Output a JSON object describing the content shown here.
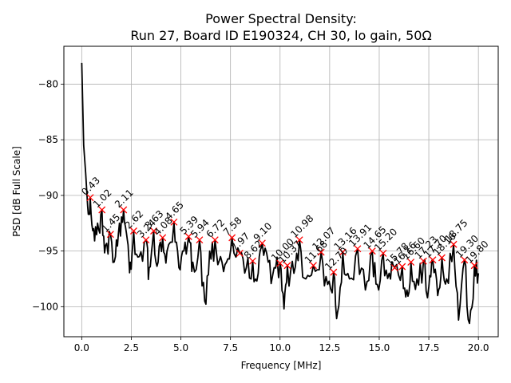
{
  "chart_data": {
    "type": "line",
    "title": "Power Spectral Density:",
    "subtitle": "Run 27, Board ID E190324, CH 30, lo gain, 50Ω",
    "xlabel": "Frequency [MHz]",
    "ylabel": "PSD [dB Full Scale]",
    "xlim": [
      -0.9,
      21.0
    ],
    "ylim": [
      -102.7,
      -76.6
    ],
    "xticks": [
      0.0,
      2.5,
      5.0,
      7.5,
      10.0,
      12.5,
      15.0,
      17.5,
      20.0
    ],
    "xtick_labels": [
      "0.0",
      "2.5",
      "5.0",
      "7.5",
      "10.0",
      "12.5",
      "15.0",
      "17.5",
      "20.0"
    ],
    "yticks": [
      -80,
      -85,
      -90,
      -95,
      -100
    ],
    "ytick_labels": [
      "−80",
      "−85",
      "−90",
      "−95",
      "−100"
    ],
    "grid": true,
    "line_color": "#000000",
    "marker_color": "#ff0000",
    "series": [
      {
        "name": "PSD",
        "x": [
          0.0,
          0.1,
          0.2,
          0.3,
          0.43,
          0.6,
          0.8,
          1.02,
          1.2,
          1.45,
          1.7,
          1.9,
          2.11,
          2.3,
          2.45,
          2.62,
          2.9,
          3.24,
          3.4,
          3.63,
          3.85,
          4.08,
          4.3,
          4.65,
          4.9,
          5.15,
          5.39,
          5.6,
          5.94,
          6.2,
          6.45,
          6.72,
          7.0,
          7.3,
          7.58,
          7.97,
          8.3,
          8.62,
          8.9,
          9.1,
          9.4,
          9.7,
          10.0,
          10.2,
          10.37,
          10.7,
          10.98,
          11.3,
          11.68,
          12.07,
          12.4,
          12.7,
          12.9,
          13.16,
          13.5,
          13.91,
          14.3,
          14.65,
          14.9,
          15.2,
          15.5,
          15.78,
          16.16,
          16.4,
          16.6,
          16.9,
          17.23,
          17.5,
          17.7,
          17.95,
          18.16,
          18.4,
          18.75,
          19.0,
          19.3,
          19.55,
          19.8,
          20.0
        ],
        "y": [
          -78.1,
          -85.5,
          -88.0,
          -91.0,
          -90.2,
          -93.0,
          -92.5,
          -91.3,
          -94.5,
          -93.5,
          -95.5,
          -92.5,
          -91.3,
          -94.0,
          -96.0,
          -93.2,
          -95.5,
          -94.0,
          -96.5,
          -93.2,
          -96.0,
          -93.8,
          -95.0,
          -92.4,
          -96.5,
          -95.0,
          -93.7,
          -96.0,
          -94.0,
          -99.5,
          -95.0,
          -94.0,
          -95.5,
          -96.0,
          -93.8,
          -95.2,
          -96.5,
          -95.9,
          -97.0,
          -94.3,
          -96.0,
          -96.5,
          -96.1,
          -100.2,
          -96.3,
          -97.0,
          -94.0,
          -97.5,
          -96.3,
          -95.1,
          -98.0,
          -96.9,
          -100.5,
          -95.1,
          -97.5,
          -94.8,
          -98.5,
          -95.0,
          -98.0,
          -95.2,
          -97.0,
          -96.5,
          -96.4,
          -98.5,
          -96.0,
          -97.5,
          -95.9,
          -98.2,
          -95.8,
          -99.0,
          -95.6,
          -97.5,
          -94.4,
          -101.2,
          -95.8,
          -101.5,
          -96.3,
          -97.0
        ]
      }
    ],
    "peaks": [
      {
        "label": "0.43",
        "x": 0.43,
        "y": -90.2
      },
      {
        "label": "1.02",
        "x": 1.02,
        "y": -91.3
      },
      {
        "label": "1.45",
        "x": 1.45,
        "y": -93.5
      },
      {
        "label": "2.11",
        "x": 2.11,
        "y": -91.3
      },
      {
        "label": "2.62",
        "x": 2.62,
        "y": -93.2
      },
      {
        "label": "3.24",
        "x": 3.24,
        "y": -94.0
      },
      {
        "label": "3.63",
        "x": 3.63,
        "y": -93.2
      },
      {
        "label": "4.08",
        "x": 4.08,
        "y": -93.8
      },
      {
        "label": "4.65",
        "x": 4.65,
        "y": -92.4
      },
      {
        "label": "5.39",
        "x": 5.39,
        "y": -93.7
      },
      {
        "label": "5.94",
        "x": 5.94,
        "y": -94.0
      },
      {
        "label": "6.72",
        "x": 6.72,
        "y": -94.0
      },
      {
        "label": "7.58",
        "x": 7.58,
        "y": -93.8
      },
      {
        "label": "7.97",
        "x": 7.97,
        "y": -95.2
      },
      {
        "label": "8.62",
        "x": 8.62,
        "y": -95.9
      },
      {
        "label": "9.10",
        "x": 9.1,
        "y": -94.3
      },
      {
        "label": "10.00",
        "x": 10.0,
        "y": -96.1
      },
      {
        "label": "10.37",
        "x": 10.37,
        "y": -96.3
      },
      {
        "label": "10.98",
        "x": 10.98,
        "y": -94.0
      },
      {
        "label": "11.68",
        "x": 11.68,
        "y": -96.3
      },
      {
        "label": "12.07",
        "x": 12.07,
        "y": -95.1
      },
      {
        "label": "12.70",
        "x": 12.7,
        "y": -96.9
      },
      {
        "label": "13.16",
        "x": 13.16,
        "y": -95.1
      },
      {
        "label": "13.91",
        "x": 13.91,
        "y": -94.8
      },
      {
        "label": "14.65",
        "x": 14.65,
        "y": -95.0
      },
      {
        "label": "15.20",
        "x": 15.2,
        "y": -95.2
      },
      {
        "label": "15.78",
        "x": 15.78,
        "y": -96.5
      },
      {
        "label": "16.16",
        "x": 16.16,
        "y": -96.4
      },
      {
        "label": "16.60",
        "x": 16.6,
        "y": -96.0
      },
      {
        "label": "17.23",
        "x": 17.23,
        "y": -95.9
      },
      {
        "label": "17.70",
        "x": 17.7,
        "y": -95.8
      },
      {
        "label": "18.16",
        "x": 18.16,
        "y": -95.6
      },
      {
        "label": "18.75",
        "x": 18.75,
        "y": -94.4
      },
      {
        "label": "19.30",
        "x": 19.3,
        "y": -95.8
      },
      {
        "label": "19.80",
        "x": 19.8,
        "y": -96.3
      }
    ]
  }
}
